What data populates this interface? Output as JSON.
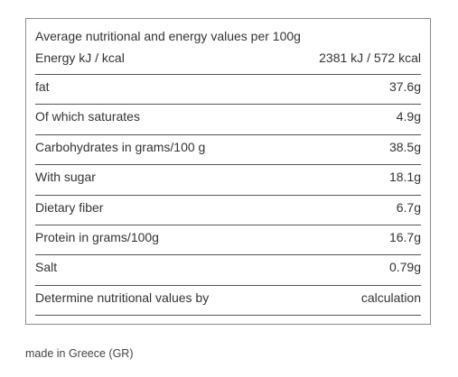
{
  "table": {
    "title": "Average nutritional and energy values per 100g",
    "rows": [
      [
        "Energy kJ / kcal",
        "2381 kJ / 572 kcal"
      ],
      [
        "fat",
        "37.6g"
      ],
      [
        "Of which saturates",
        "4.9g"
      ],
      [
        "Carbohydrates in grams/100 g",
        "38.5g"
      ],
      [
        "With sugar",
        "18.1g"
      ],
      [
        "Dietary fiber",
        "6.7g"
      ],
      [
        "Protein in grams/100g",
        "16.7g"
      ],
      [
        "Salt",
        "0.79g"
      ],
      [
        "Determine nutritional values by",
        "calculation"
      ]
    ]
  },
  "footer": "made in Greece (GR)"
}
